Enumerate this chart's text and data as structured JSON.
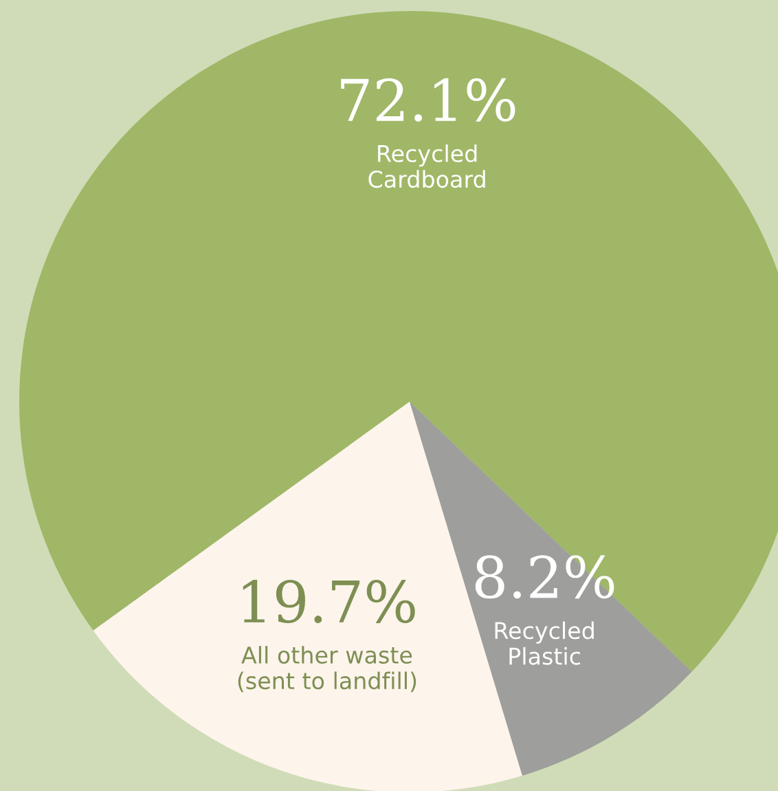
{
  "chart_data": {
    "type": "pie",
    "categories": [
      "Recycled\nCardboard",
      "All other waste\n(sent to landfill)",
      "Recycled\nPlastic"
    ],
    "values": [
      72.1,
      19.7,
      8.2
    ],
    "value_labels": [
      "72.1%",
      "19.7%",
      "8.2%"
    ],
    "colors": [
      "#a0b767",
      "#fdf4ec",
      "#9e9e9c"
    ],
    "legend": false
  }
}
